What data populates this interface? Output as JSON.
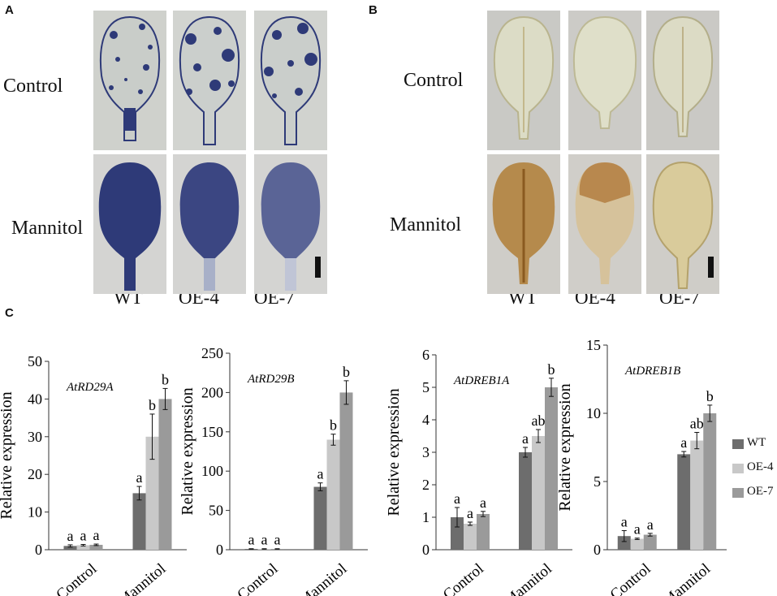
{
  "panels": {
    "A": {
      "letter": "A",
      "rows": [
        "Control",
        "Mannitol"
      ],
      "columns": [
        "WT",
        "OE-4",
        "OE-7"
      ]
    },
    "B": {
      "letter": "B",
      "rows": [
        "Control",
        "Mannitol"
      ],
      "columns": [
        "WT",
        "OE-4",
        "OE-7"
      ]
    },
    "C": {
      "letter": "C"
    }
  },
  "colors": {
    "WT": "#6d6d6d",
    "OE-4": "#c8c8c8",
    "OE-7": "#9a9a9a",
    "nbt_stain": "#2e3a78",
    "dab_stain": "#9c6a2a"
  },
  "legend": [
    "WT",
    "OE-4",
    "OE-7"
  ],
  "chart_data": [
    {
      "type": "bar",
      "gene": "AtRD29A",
      "ylabel": "Relative expression",
      "ylim": [
        0,
        50
      ],
      "yticks": [
        0,
        10,
        20,
        30,
        40,
        50
      ],
      "categories": [
        "Control",
        "Mannitol"
      ],
      "series": [
        {
          "name": "WT",
          "values": [
            1,
            15
          ],
          "errors": [
            0.3,
            1.8
          ],
          "letters": [
            "a",
            "a"
          ]
        },
        {
          "name": "OE-4",
          "values": [
            1.2,
            30
          ],
          "errors": [
            0.2,
            6
          ],
          "letters": [
            "a",
            "b"
          ]
        },
        {
          "name": "OE-7",
          "values": [
            1.3,
            40
          ],
          "errors": [
            0.2,
            2.8
          ],
          "letters": [
            "a",
            "b"
          ]
        }
      ]
    },
    {
      "type": "bar",
      "gene": "AtRD29B",
      "ylabel": "Relative expression",
      "ylim": [
        0,
        250
      ],
      "yticks": [
        0,
        50,
        100,
        150,
        200,
        250
      ],
      "categories": [
        "Control",
        "Mannitol"
      ],
      "series": [
        {
          "name": "WT",
          "values": [
            1,
            80
          ],
          "errors": [
            0.3,
            5
          ],
          "letters": [
            "a",
            "a"
          ]
        },
        {
          "name": "OE-4",
          "values": [
            1,
            140
          ],
          "errors": [
            0.3,
            7
          ],
          "letters": [
            "a",
            "b"
          ]
        },
        {
          "name": "OE-7",
          "values": [
            1,
            200
          ],
          "errors": [
            0.3,
            15
          ],
          "letters": [
            "a",
            "b"
          ]
        }
      ]
    },
    {
      "type": "bar",
      "gene": "AtDREB1A",
      "ylabel": "Relative expression",
      "ylim": [
        0,
        6
      ],
      "yticks": [
        0,
        1,
        2,
        3,
        4,
        5,
        6
      ],
      "categories": [
        "Control",
        "Mannitol"
      ],
      "series": [
        {
          "name": "WT",
          "values": [
            1,
            3
          ],
          "errors": [
            0.3,
            0.15
          ],
          "letters": [
            "a",
            "a"
          ]
        },
        {
          "name": "OE-4",
          "values": [
            0.8,
            3.5
          ],
          "errors": [
            0.05,
            0.2
          ],
          "letters": [
            "a",
            "ab"
          ]
        },
        {
          "name": "OE-7",
          "values": [
            1.1,
            5
          ],
          "errors": [
            0.08,
            0.28
          ],
          "letters": [
            "a",
            "b"
          ]
        }
      ]
    },
    {
      "type": "bar",
      "gene": "AtDREB1B",
      "ylabel": "Relative expression",
      "ylim": [
        0,
        15
      ],
      "yticks": [
        0,
        5,
        10,
        15
      ],
      "categories": [
        "Control",
        "Mannitol"
      ],
      "series": [
        {
          "name": "WT",
          "values": [
            1,
            7
          ],
          "errors": [
            0.4,
            0.2
          ],
          "letters": [
            "a",
            "a"
          ]
        },
        {
          "name": "OE-4",
          "values": [
            0.8,
            8
          ],
          "errors": [
            0.05,
            0.6
          ],
          "letters": [
            "a",
            "ab"
          ]
        },
        {
          "name": "OE-7",
          "values": [
            1.1,
            10
          ],
          "errors": [
            0.1,
            0.6
          ],
          "letters": [
            "a",
            "b"
          ]
        }
      ]
    }
  ]
}
